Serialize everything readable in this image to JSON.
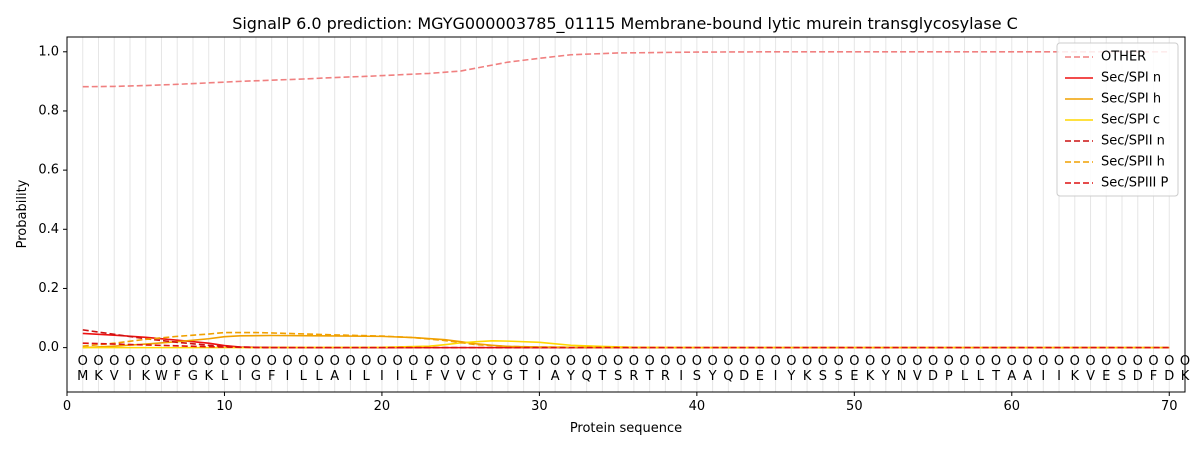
{
  "chart_data": {
    "type": "line",
    "title": "SignalP 6.0 prediction: MGYG000003785_01115 Membrane-bound lytic murein transglycosylase C",
    "xlabel": "Protein sequence",
    "ylabel": "Probability",
    "xlim": [
      0,
      71
    ],
    "ylim": [
      -0.15,
      1.05
    ],
    "xticks": [
      "0",
      "10",
      "20",
      "30",
      "40",
      "50",
      "60",
      "70"
    ],
    "yticks": [
      "0.0",
      "0.2",
      "0.4",
      "0.6",
      "0.8",
      "1.0"
    ],
    "grid": "vertical lines at every residue",
    "legend_position": "top-right",
    "sequence": [
      "M",
      "K",
      "V",
      "I",
      "K",
      "W",
      "F",
      "G",
      "K",
      "L",
      "I",
      "G",
      "F",
      "I",
      "L",
      "L",
      "A",
      "I",
      "L",
      "I",
      "I",
      "L",
      "F",
      "V",
      "V",
      "C",
      "Y",
      "G",
      "T",
      "I",
      "A",
      "Y",
      "Q",
      "T",
      "S",
      "R",
      "T",
      "R",
      "I",
      "S",
      "Y",
      "Q",
      "D",
      "E",
      "I",
      "Y",
      "K",
      "S",
      "S",
      "E",
      "K",
      "Y",
      "N",
      "V",
      "D",
      "P",
      "L",
      "L",
      "T",
      "A",
      "A",
      "I",
      "I",
      "K",
      "V",
      "E",
      "S",
      "D",
      "F",
      "D",
      "K"
    ],
    "residue_marker": "O",
    "series": [
      {
        "name": "OTHER",
        "color": "#f08080",
        "dash": true,
        "points": [
          [
            1,
            0.882
          ],
          [
            3,
            0.883
          ],
          [
            5,
            0.886
          ],
          [
            7,
            0.89
          ],
          [
            9,
            0.895
          ],
          [
            11,
            0.9
          ],
          [
            13,
            0.904
          ],
          [
            15,
            0.908
          ],
          [
            17,
            0.913
          ],
          [
            19,
            0.917
          ],
          [
            21,
            0.922
          ],
          [
            23,
            0.927
          ],
          [
            25,
            0.935
          ],
          [
            26,
            0.945
          ],
          [
            27,
            0.955
          ],
          [
            28,
            0.965
          ],
          [
            30,
            0.978
          ],
          [
            32,
            0.99
          ],
          [
            35,
            0.996
          ],
          [
            40,
            0.999
          ],
          [
            45,
            1.0
          ],
          [
            50,
            1.0
          ],
          [
            55,
            1.0
          ],
          [
            60,
            1.0
          ],
          [
            65,
            1.0
          ],
          [
            70,
            1.0
          ]
        ]
      },
      {
        "name": "Sec/SPI n",
        "color": "#ee1111",
        "dash": false,
        "points": [
          [
            1,
            0.048
          ],
          [
            3,
            0.042
          ],
          [
            5,
            0.035
          ],
          [
            7,
            0.025
          ],
          [
            9,
            0.015
          ],
          [
            10,
            0.007
          ],
          [
            11,
            0.002
          ],
          [
            12,
            0.001
          ],
          [
            15,
            0.0
          ],
          [
            70,
            0.0
          ]
        ]
      },
      {
        "name": "Sec/SPI h",
        "color": "#f0a000",
        "dash": false,
        "points": [
          [
            1,
            0.0
          ],
          [
            3,
            0.005
          ],
          [
            5,
            0.012
          ],
          [
            7,
            0.02
          ],
          [
            9,
            0.03
          ],
          [
            10,
            0.037
          ],
          [
            11,
            0.04
          ],
          [
            13,
            0.041
          ],
          [
            16,
            0.04
          ],
          [
            20,
            0.038
          ],
          [
            22,
            0.034
          ],
          [
            24,
            0.027
          ],
          [
            25,
            0.02
          ],
          [
            26,
            0.013
          ],
          [
            27,
            0.008
          ],
          [
            28,
            0.004
          ],
          [
            30,
            0.002
          ],
          [
            35,
            0.0
          ],
          [
            70,
            0.0
          ]
        ]
      },
      {
        "name": "Sec/SPI c",
        "color": "#ffd700",
        "dash": false,
        "points": [
          [
            1,
            0.0
          ],
          [
            10,
            0.0
          ],
          [
            20,
            0.001
          ],
          [
            23,
            0.005
          ],
          [
            24,
            0.01
          ],
          [
            25,
            0.016
          ],
          [
            26,
            0.02
          ],
          [
            27,
            0.023
          ],
          [
            28,
            0.022
          ],
          [
            30,
            0.018
          ],
          [
            31,
            0.013
          ],
          [
            32,
            0.008
          ],
          [
            34,
            0.004
          ],
          [
            36,
            0.001
          ],
          [
            40,
            0.0
          ],
          [
            70,
            0.0
          ]
        ]
      },
      {
        "name": "Sec/SPII n",
        "color": "#cc1111",
        "dash": true,
        "points": [
          [
            1,
            0.06
          ],
          [
            3,
            0.045
          ],
          [
            5,
            0.03
          ],
          [
            7,
            0.018
          ],
          [
            9,
            0.008
          ],
          [
            10,
            0.004
          ],
          [
            11,
            0.002
          ],
          [
            13,
            0.0
          ],
          [
            70,
            0.0
          ]
        ]
      },
      {
        "name": "Sec/SPII h",
        "color": "#f0a000",
        "dash": true,
        "points": [
          [
            1,
            0.005
          ],
          [
            3,
            0.015
          ],
          [
            5,
            0.028
          ],
          [
            7,
            0.038
          ],
          [
            9,
            0.046
          ],
          [
            10,
            0.051
          ],
          [
            12,
            0.051
          ],
          [
            14,
            0.048
          ],
          [
            17,
            0.043
          ],
          [
            20,
            0.039
          ],
          [
            22,
            0.034
          ],
          [
            24,
            0.024
          ],
          [
            25,
            0.017
          ],
          [
            26,
            0.01
          ],
          [
            28,
            0.004
          ],
          [
            30,
            0.002
          ],
          [
            35,
            0.0
          ],
          [
            70,
            0.0
          ]
        ]
      },
      {
        "name": "Sec/SPIII P",
        "color": "#dd1111",
        "dash": true,
        "points": [
          [
            1,
            0.015
          ],
          [
            3,
            0.012
          ],
          [
            5,
            0.009
          ],
          [
            7,
            0.006
          ],
          [
            9,
            0.003
          ],
          [
            11,
            0.001
          ],
          [
            13,
            0.0
          ],
          [
            70,
            0.0
          ]
        ]
      }
    ]
  }
}
